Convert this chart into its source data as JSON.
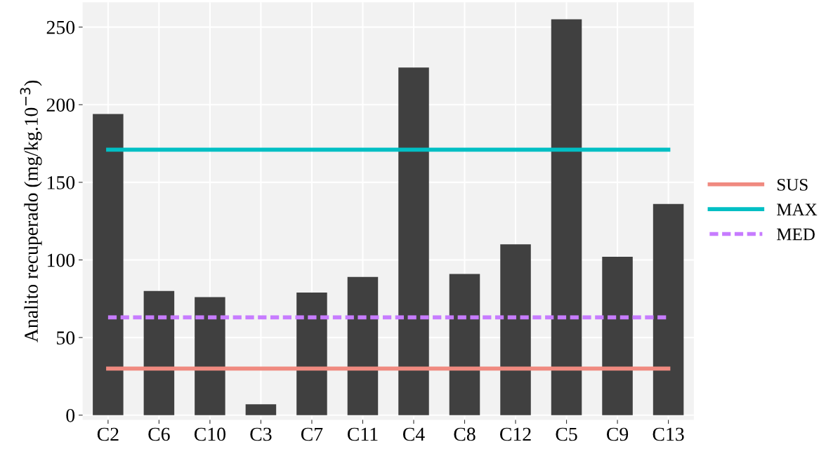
{
  "chart_data": {
    "type": "bar",
    "ylabel": "Analito recuperado (mg/kg.10$^{−3}$)",
    "categories": [
      "C2",
      "C6",
      "C10",
      "C3",
      "C7",
      "C11",
      "C4",
      "C8",
      "C12",
      "C5",
      "C9",
      "C13"
    ],
    "series": [
      {
        "color": "#404040",
        "values": [
          194,
          80,
          76,
          7,
          79,
          89,
          224,
          91,
          110,
          255,
          102,
          136
        ]
      },
      {
        "type": "line",
        "name": "SUS",
        "color": "#f08a80",
        "line_style": "solid",
        "values": [
          30,
          30,
          30,
          30,
          30,
          30,
          30,
          30,
          30,
          30,
          30,
          30
        ]
      },
      {
        "type": "line",
        "name": "MAX",
        "color": "#00bfc4",
        "line_style": "solid",
        "values": [
          171,
          171,
          171,
          171,
          171,
          171,
          171,
          171,
          171,
          171,
          171,
          171
        ]
      },
      {
        "type": "line",
        "name": "MED",
        "color": "#c77cff",
        "line_style": "dashed",
        "values": [
          63,
          63,
          63,
          63,
          63,
          63,
          63,
          63,
          63,
          63,
          63,
          63
        ]
      }
    ],
    "ylim": [
      -3,
      266
    ],
    "yticks": [
      0,
      50,
      100,
      150,
      200,
      250
    ],
    "grid": true,
    "legend": "right",
    "marker": "none"
  }
}
